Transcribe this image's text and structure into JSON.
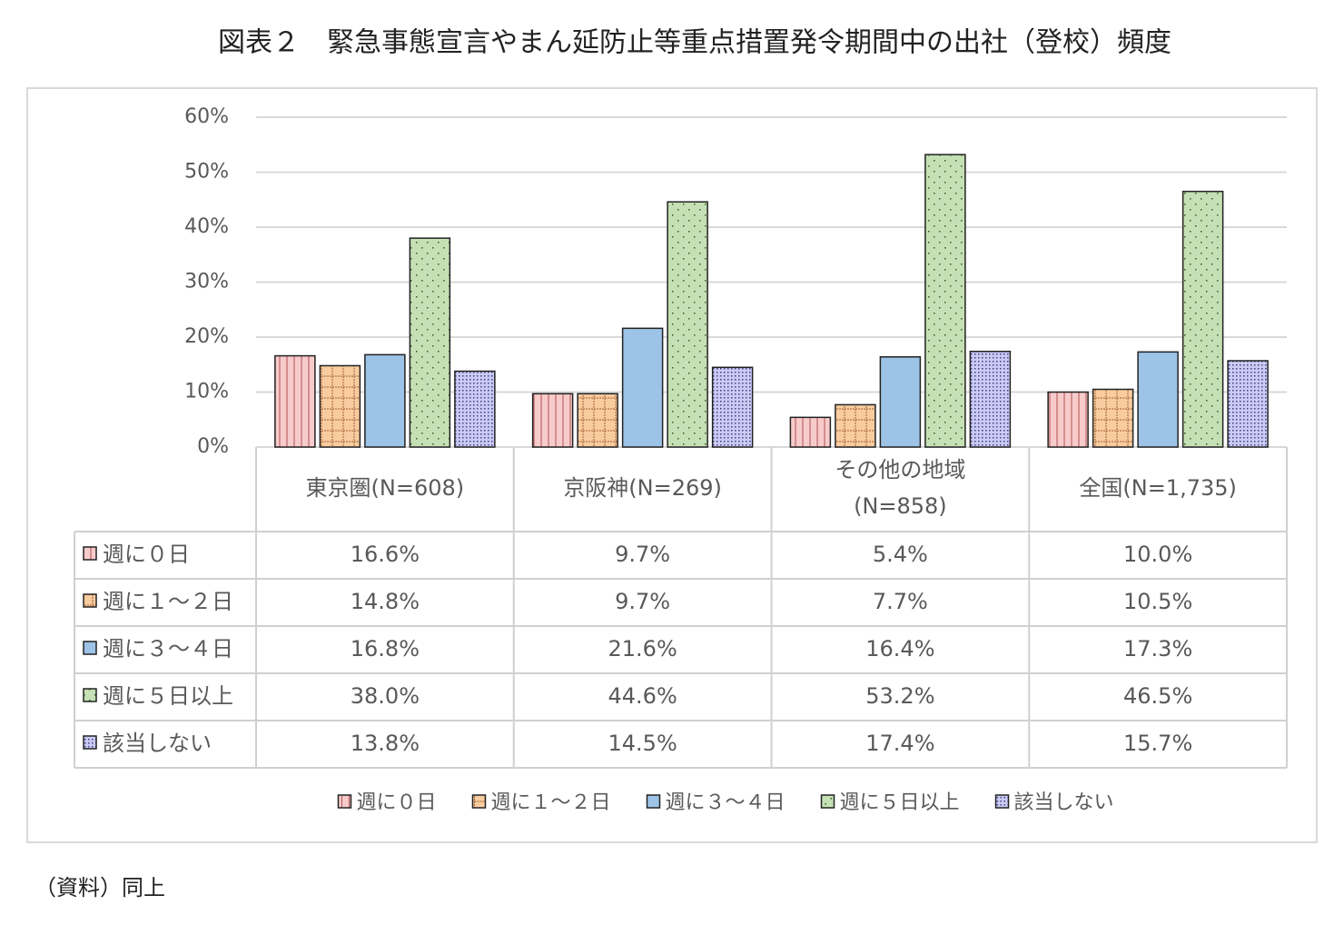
{
  "chart_data": {
    "type": "bar",
    "title": "図表２　緊急事態宣言やまん延防止等重点措置発令期間中の出社（登校）頻度",
    "source": "（資料）同上",
    "categories": [
      "東京圏(N=608)",
      "京阪神(N=269)",
      "その他の地域\n(N=858)",
      "全国(N=1,735)"
    ],
    "series": [
      {
        "name": "週に０日",
        "color": "#f8cbcb",
        "pattern": "vertical-lines",
        "values": [
          16.6,
          9.7,
          5.4,
          10.0
        ],
        "value_labels": [
          "16.6%",
          "9.7%",
          "5.4%",
          "10.0%"
        ]
      },
      {
        "name": "週に１～２日",
        "color": "#f9cc9f",
        "pattern": "grid",
        "values": [
          14.8,
          9.7,
          7.7,
          10.5
        ],
        "value_labels": [
          "14.8%",
          "9.7%",
          "7.7%",
          "10.5%"
        ]
      },
      {
        "name": "週に３～４日",
        "color": "#9dc3e6",
        "pattern": "none",
        "values": [
          16.8,
          21.6,
          16.4,
          17.3
        ],
        "value_labels": [
          "16.8%",
          "21.6%",
          "16.4%",
          "17.3%"
        ]
      },
      {
        "name": "週に５日以上",
        "color": "#c5e0b4",
        "pattern": "dots",
        "values": [
          38.0,
          44.6,
          53.2,
          46.5
        ],
        "value_labels": [
          "38.0%",
          "44.6%",
          "53.2%",
          "46.5%"
        ]
      },
      {
        "name": "該当しない",
        "color": "#cacaf5",
        "pattern": "dense-dots",
        "values": [
          13.8,
          14.5,
          17.4,
          15.7
        ],
        "value_labels": [
          "13.8%",
          "14.5%",
          "17.4%",
          "15.7%"
        ]
      }
    ],
    "ylim": [
      0,
      60
    ],
    "yticks": [
      {
        "value": 0,
        "label": "0%"
      },
      {
        "value": 10,
        "label": "10%"
      },
      {
        "value": 20,
        "label": "20%"
      },
      {
        "value": 30,
        "label": "30%"
      },
      {
        "value": 40,
        "label": "40%"
      },
      {
        "value": 50,
        "label": "50%"
      },
      {
        "value": 60,
        "label": "60%"
      }
    ],
    "grid": true,
    "legend": "bottom",
    "data_table": true
  }
}
